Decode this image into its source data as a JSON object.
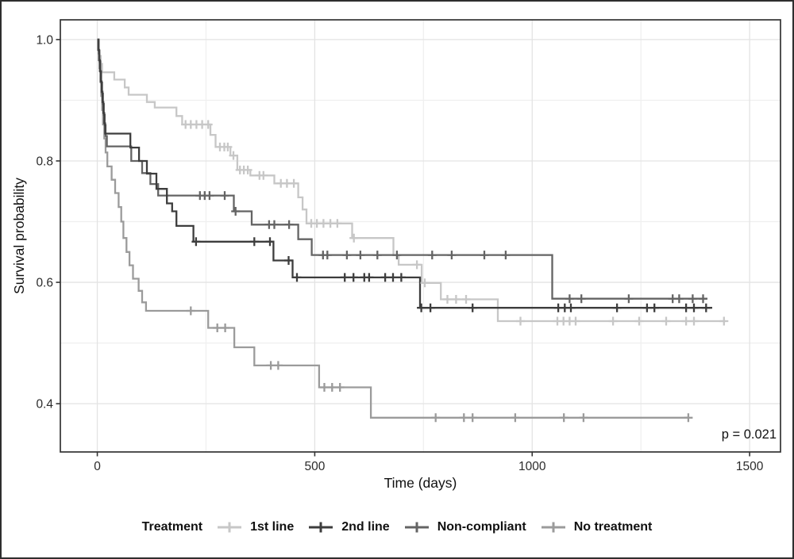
{
  "figure": {
    "x_axis_title": "Time (days)",
    "y_axis_title": "Survival probability",
    "annotation": "p = 0.021",
    "legend_title": "Treatment",
    "x_tick_labels": [
      "0",
      "500",
      "1000",
      "1500"
    ],
    "y_tick_labels": [
      "1.0",
      "0.8",
      "0.6",
      "0.4"
    ]
  },
  "chart_data": {
    "type": "line",
    "subtype": "kaplan-meier-step-survival",
    "title": "",
    "xlabel": "Time (days)",
    "ylabel": "Survival probability",
    "annotation": "p = 0.021",
    "grid": true,
    "legend_position": "bottom",
    "legend_title": "Treatment",
    "x_ticks": [
      0,
      500,
      1000,
      1500
    ],
    "x_minor_ticks": [
      250,
      750,
      1250
    ],
    "y_ticks": [
      1.0,
      0.8,
      0.6,
      0.4
    ],
    "y_minor_ticks": [
      0.9,
      0.7,
      0.5
    ],
    "xlim": [
      -85,
      1571
    ],
    "ylim": [
      0.3205,
      1.0325
    ],
    "colors": {
      "grid_major": "#e3e3e3",
      "grid_minor": "#efefef",
      "panel_border": "#333333",
      "tick": "#333333",
      "tick_label": "#2b2b2b",
      "axis_title": "#111111",
      "annotation_text": "#111111"
    },
    "series": [
      {
        "name": "1st line",
        "color": "#c7c7c7",
        "steps": [
          [
            0,
            1.0
          ],
          [
            4,
            0.973
          ],
          [
            8,
            0.96
          ],
          [
            11,
            0.946
          ],
          [
            39,
            0.934
          ],
          [
            63,
            0.921
          ],
          [
            72,
            0.909
          ],
          [
            114,
            0.897
          ],
          [
            132,
            0.888
          ],
          [
            182,
            0.874
          ],
          [
            195,
            0.86
          ],
          [
            260,
            0.843
          ],
          [
            272,
            0.823
          ],
          [
            306,
            0.809
          ],
          [
            322,
            0.785
          ],
          [
            352,
            0.776
          ],
          [
            407,
            0.763
          ],
          [
            462,
            0.74
          ],
          [
            472,
            0.72
          ],
          [
            481,
            0.697
          ],
          [
            586,
            0.673
          ],
          [
            681,
            0.645
          ],
          [
            693,
            0.629
          ],
          [
            746,
            0.599
          ],
          [
            790,
            0.572
          ],
          [
            921,
            0.536
          ],
          [
            1445,
            0.536
          ]
        ],
        "censors": [
          [
            203,
            0.86
          ],
          [
            215,
            0.86
          ],
          [
            228,
            0.86
          ],
          [
            241,
            0.86
          ],
          [
            255,
            0.86
          ],
          [
            282,
            0.823
          ],
          [
            292,
            0.823
          ],
          [
            300,
            0.823
          ],
          [
            313,
            0.809
          ],
          [
            328,
            0.785
          ],
          [
            337,
            0.785
          ],
          [
            346,
            0.785
          ],
          [
            373,
            0.776
          ],
          [
            382,
            0.776
          ],
          [
            422,
            0.763
          ],
          [
            436,
            0.763
          ],
          [
            452,
            0.763
          ],
          [
            492,
            0.697
          ],
          [
            505,
            0.697
          ],
          [
            520,
            0.697
          ],
          [
            536,
            0.697
          ],
          [
            552,
            0.697
          ],
          [
            590,
            0.673
          ],
          [
            735,
            0.629
          ],
          [
            753,
            0.599
          ],
          [
            805,
            0.572
          ],
          [
            825,
            0.572
          ],
          [
            848,
            0.572
          ],
          [
            973,
            0.536
          ],
          [
            1058,
            0.536
          ],
          [
            1072,
            0.536
          ],
          [
            1086,
            0.536
          ],
          [
            1100,
            0.536
          ],
          [
            1186,
            0.536
          ],
          [
            1246,
            0.536
          ],
          [
            1308,
            0.536
          ],
          [
            1354,
            0.536
          ],
          [
            1372,
            0.536
          ],
          [
            1441,
            0.536
          ]
        ]
      },
      {
        "name": "2nd line",
        "color": "#3d3d3d",
        "steps": [
          [
            0,
            1.0
          ],
          [
            2,
            0.983
          ],
          [
            4,
            0.966
          ],
          [
            6,
            0.948
          ],
          [
            8,
            0.931
          ],
          [
            10,
            0.914
          ],
          [
            12,
            0.897
          ],
          [
            14,
            0.879
          ],
          [
            16,
            0.862
          ],
          [
            18,
            0.845
          ],
          [
            76,
            0.822
          ],
          [
            96,
            0.8
          ],
          [
            114,
            0.779
          ],
          [
            136,
            0.754
          ],
          [
            160,
            0.73
          ],
          [
            172,
            0.717
          ],
          [
            182,
            0.693
          ],
          [
            221,
            0.667
          ],
          [
            405,
            0.636
          ],
          [
            449,
            0.608
          ],
          [
            742,
            0.558
          ],
          [
            1414,
            0.558
          ]
        ],
        "censors": [
          [
            227,
            0.667
          ],
          [
            361,
            0.667
          ],
          [
            397,
            0.667
          ],
          [
            440,
            0.636
          ],
          [
            459,
            0.608
          ],
          [
            569,
            0.608
          ],
          [
            589,
            0.608
          ],
          [
            614,
            0.608
          ],
          [
            625,
            0.608
          ],
          [
            662,
            0.608
          ],
          [
            680,
            0.608
          ],
          [
            699,
            0.608
          ],
          [
            745,
            0.558
          ],
          [
            766,
            0.558
          ],
          [
            863,
            0.558
          ],
          [
            1060,
            0.558
          ],
          [
            1075,
            0.558
          ],
          [
            1089,
            0.558
          ],
          [
            1195,
            0.558
          ],
          [
            1264,
            0.558
          ],
          [
            1281,
            0.558
          ],
          [
            1354,
            0.558
          ],
          [
            1372,
            0.558
          ],
          [
            1400,
            0.558
          ]
        ]
      },
      {
        "name": "Non-compliant",
        "color": "#646464",
        "steps": [
          [
            0,
            1.0
          ],
          [
            3,
            0.982
          ],
          [
            5,
            0.964
          ],
          [
            7,
            0.947
          ],
          [
            9,
            0.929
          ],
          [
            11,
            0.911
          ],
          [
            13,
            0.894
          ],
          [
            15,
            0.876
          ],
          [
            17,
            0.859
          ],
          [
            19,
            0.841
          ],
          [
            22,
            0.824
          ],
          [
            78,
            0.8
          ],
          [
            103,
            0.78
          ],
          [
            122,
            0.762
          ],
          [
            140,
            0.743
          ],
          [
            314,
            0.717
          ],
          [
            355,
            0.695
          ],
          [
            462,
            0.671
          ],
          [
            493,
            0.645
          ],
          [
            1046,
            0.573
          ],
          [
            1402,
            0.573
          ]
        ],
        "censors": [
          [
            236,
            0.743
          ],
          [
            247,
            0.743
          ],
          [
            258,
            0.743
          ],
          [
            293,
            0.743
          ],
          [
            318,
            0.717
          ],
          [
            395,
            0.695
          ],
          [
            407,
            0.695
          ],
          [
            441,
            0.695
          ],
          [
            519,
            0.645
          ],
          [
            529,
            0.645
          ],
          [
            574,
            0.645
          ],
          [
            605,
            0.645
          ],
          [
            644,
            0.645
          ],
          [
            689,
            0.645
          ],
          [
            770,
            0.645
          ],
          [
            815,
            0.645
          ],
          [
            890,
            0.645
          ],
          [
            939,
            0.645
          ],
          [
            1086,
            0.573
          ],
          [
            1113,
            0.573
          ],
          [
            1222,
            0.573
          ],
          [
            1323,
            0.573
          ],
          [
            1338,
            0.573
          ],
          [
            1369,
            0.573
          ],
          [
            1393,
            0.573
          ]
        ]
      },
      {
        "name": "No treatment",
        "color": "#9b9b9b",
        "steps": [
          [
            0,
            1.0
          ],
          [
            3,
            0.977
          ],
          [
            5,
            0.953
          ],
          [
            7,
            0.93
          ],
          [
            9,
            0.907
          ],
          [
            11,
            0.884
          ],
          [
            13,
            0.86
          ],
          [
            16,
            0.837
          ],
          [
            19,
            0.814
          ],
          [
            23,
            0.791
          ],
          [
            33,
            0.769
          ],
          [
            41,
            0.747
          ],
          [
            49,
            0.724
          ],
          [
            55,
            0.7
          ],
          [
            60,
            0.673
          ],
          [
            67,
            0.65
          ],
          [
            74,
            0.628
          ],
          [
            82,
            0.606
          ],
          [
            95,
            0.586
          ],
          [
            103,
            0.567
          ],
          [
            112,
            0.553
          ],
          [
            255,
            0.525
          ],
          [
            315,
            0.493
          ],
          [
            361,
            0.463
          ],
          [
            510,
            0.427
          ],
          [
            629,
            0.377
          ],
          [
            1359,
            0.377
          ]
        ],
        "censors": [
          [
            215,
            0.553
          ],
          [
            276,
            0.525
          ],
          [
            294,
            0.525
          ],
          [
            399,
            0.463
          ],
          [
            416,
            0.463
          ],
          [
            522,
            0.427
          ],
          [
            540,
            0.427
          ],
          [
            558,
            0.427
          ],
          [
            778,
            0.377
          ],
          [
            843,
            0.377
          ],
          [
            863,
            0.377
          ],
          [
            961,
            0.377
          ],
          [
            1073,
            0.377
          ],
          [
            1118,
            0.377
          ],
          [
            1359,
            0.377
          ]
        ]
      }
    ]
  }
}
